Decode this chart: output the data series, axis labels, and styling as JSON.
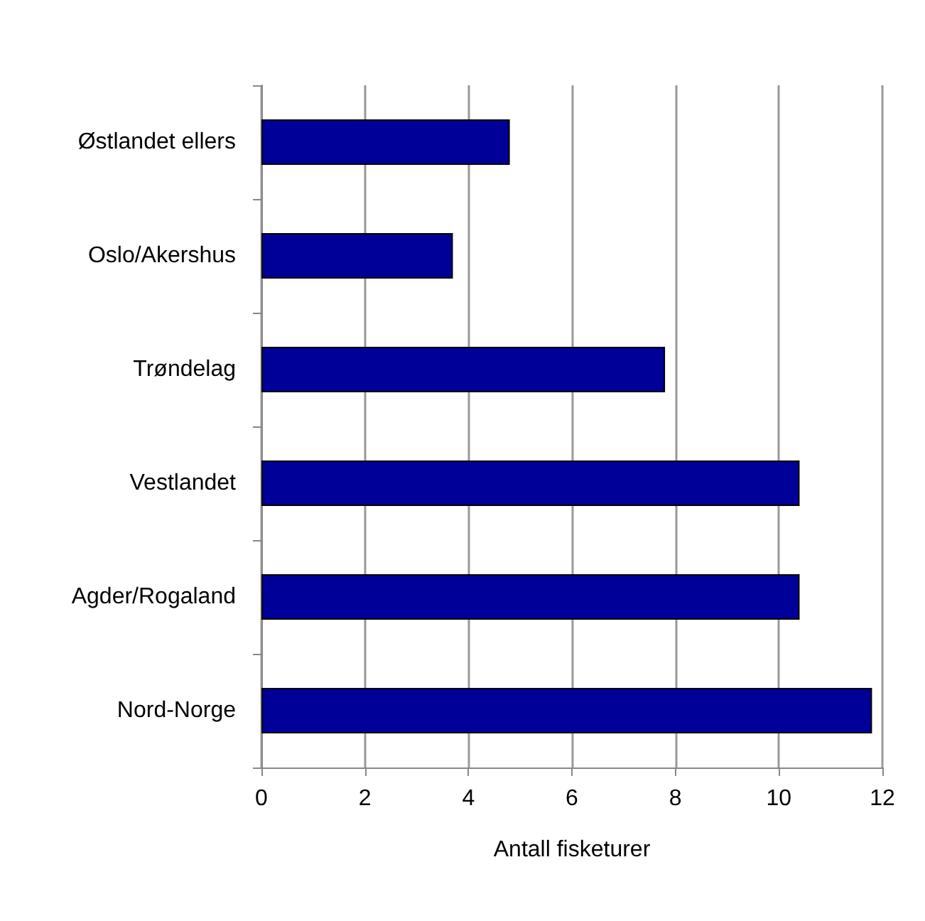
{
  "chart_data": {
    "type": "bar",
    "orientation": "horizontal",
    "xlabel": "Antall fisketurer",
    "categories": [
      "Østlandet ellers",
      "Oslo/Akershus",
      "Trøndelag",
      "Vestlandet",
      "Agder/Rogaland",
      "Nord-Norge"
    ],
    "values": [
      4.8,
      3.7,
      7.8,
      10.4,
      10.4,
      11.8
    ],
    "color": "#000099",
    "xlim": [
      0,
      12
    ],
    "xticks": [
      0,
      2,
      4,
      6,
      8,
      10,
      12
    ],
    "grid": "x"
  }
}
